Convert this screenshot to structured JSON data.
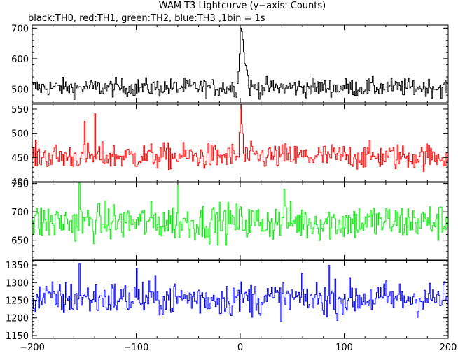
{
  "chart_data": {
    "type": "line",
    "title": "WAM T3 Lightcurve (y−axis: Counts)",
    "subtitle": "black:TH0, red:TH1, green:TH2, blue:TH3 ,1bin = 1s",
    "xlabel": "",
    "xlim": [
      -200,
      200
    ],
    "x_ticks": [
      -200,
      -100,
      0,
      100,
      200
    ],
    "bin_seconds": 1,
    "grid": false,
    "panels": [
      {
        "name": "TH0",
        "color": "#000000",
        "ylim": [
          455,
          710
        ],
        "y_ticks": [
          500,
          600,
          700
        ],
        "base": 505,
        "noise": 20,
        "burst": [
          {
            "x": 0,
            "value": 705
          },
          {
            "x": 1,
            "value": 690
          },
          {
            "x": 2,
            "value": 660
          },
          {
            "x": 3,
            "value": 620
          },
          {
            "x": 4,
            "value": 590
          },
          {
            "x": 5,
            "value": 575
          },
          {
            "x": 6,
            "value": 560
          },
          {
            "x": 7,
            "value": 545
          },
          {
            "x": -1,
            "value": 620
          },
          {
            "x": -2,
            "value": 560
          }
        ]
      },
      {
        "name": "TH1",
        "color": "#ff0000",
        "ylim": [
          400,
          560
        ],
        "y_ticks": [
          400,
          450,
          500,
          550
        ],
        "base": 452,
        "noise": 18,
        "burst": [
          {
            "x": 0,
            "value": 560
          },
          {
            "x": 1,
            "value": 520
          },
          {
            "x": 2,
            "value": 495
          },
          {
            "x": -1,
            "value": 500
          },
          {
            "x": -140,
            "value": 535
          },
          {
            "x": -150,
            "value": 520
          }
        ]
      },
      {
        "name": "TH2",
        "color": "#00ee00",
        "ylim": [
          615,
          752
        ],
        "y_ticks": [
          650,
          700,
          750
        ],
        "base": 682,
        "noise": 22,
        "burst": [
          {
            "x": -155,
            "value": 750
          },
          {
            "x": -60,
            "value": 742
          },
          {
            "x": 42,
            "value": 745
          }
        ]
      },
      {
        "name": "TH3",
        "color": "#0000ff",
        "ylim": [
          1142,
          1362
        ],
        "y_ticks": [
          1150,
          1200,
          1250,
          1300,
          1350
        ],
        "base": 1255,
        "noise": 33,
        "burst": [
          {
            "x": -155,
            "value": 1355
          },
          {
            "x": -100,
            "value": 1340
          },
          {
            "x": 85,
            "value": 1345
          }
        ]
      }
    ]
  }
}
